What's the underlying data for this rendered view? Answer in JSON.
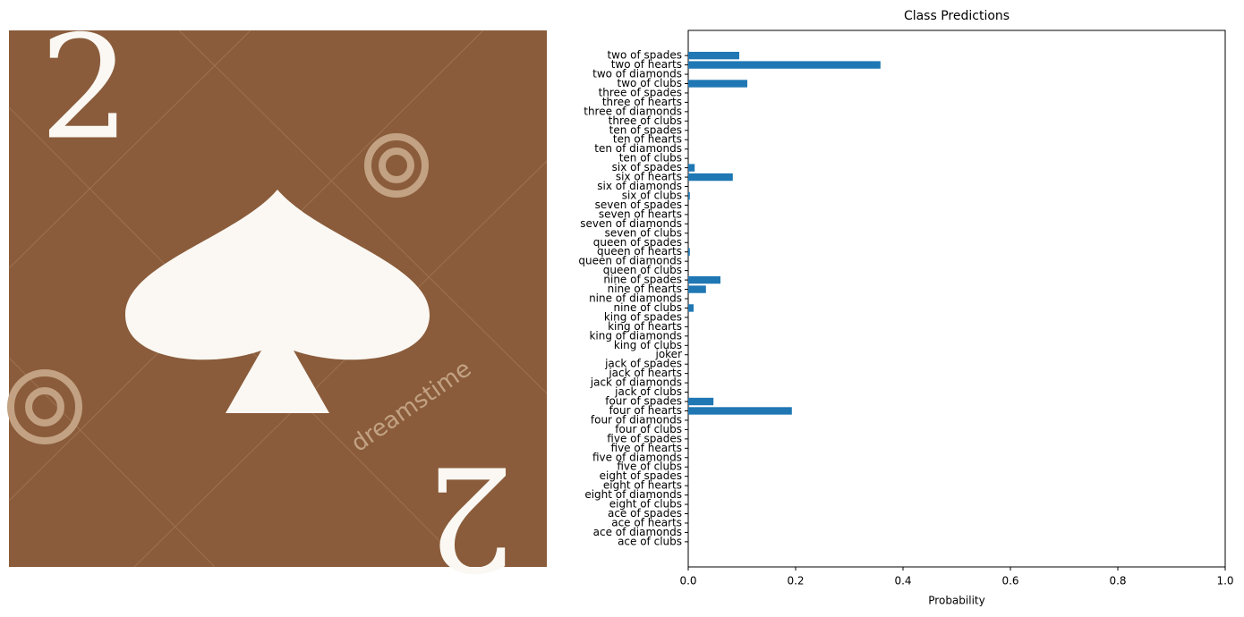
{
  "image": {
    "rank": "2",
    "watermark": "dreamstime"
  },
  "chart_data": {
    "type": "barh",
    "title": "Class Predictions",
    "x_label": "Probability",
    "categories": [
      "ace of clubs",
      "ace of diamonds",
      "ace of hearts",
      "ace of spades",
      "eight of clubs",
      "eight of diamonds",
      "eight of hearts",
      "eight of spades",
      "five of clubs",
      "five of diamonds",
      "five of hearts",
      "five of spades",
      "four of clubs",
      "four of diamonds",
      "four of hearts",
      "four of spades",
      "jack of clubs",
      "jack of diamonds",
      "jack of hearts",
      "jack of spades",
      "joker",
      "king of clubs",
      "king of diamonds",
      "king of hearts",
      "king of spades",
      "nine of clubs",
      "nine of diamonds",
      "nine of hearts",
      "nine of spades",
      "queen of clubs",
      "queen of diamonds",
      "queen of hearts",
      "queen of spades",
      "seven of clubs",
      "seven of diamonds",
      "seven of hearts",
      "seven of spades",
      "six of clubs",
      "six of diamonds",
      "six of hearts",
      "six of spades",
      "ten of clubs",
      "ten of diamonds",
      "ten of hearts",
      "ten of spades",
      "three of clubs",
      "three of diamonds",
      "three of hearts",
      "three of spades",
      "two of clubs",
      "two of diamonds",
      "two of hearts",
      "two of spades"
    ],
    "values": [
      0,
      0,
      0,
      0,
      0,
      0,
      0,
      0,
      0,
      0,
      0,
      0,
      0,
      0,
      0.193,
      0.047,
      0,
      0,
      0,
      0,
      0,
      0,
      0,
      0,
      0,
      0.01,
      0,
      0.033,
      0.06,
      0,
      0,
      0.003,
      0,
      0,
      0,
      0,
      0,
      0.003,
      0,
      0.083,
      0.012,
      0,
      0,
      0,
      0,
      0,
      0,
      0,
      0,
      0.11,
      0,
      0.358,
      0.095
    ],
    "color": "#1f77b4",
    "xlim": [
      0,
      1
    ],
    "xticks": [
      {
        "value": 0,
        "label": "0.0"
      },
      0.2,
      0.4,
      0.6,
      0.8,
      {
        "value": 1,
        "label": "1.0"
      }
    ],
    "grid": false
  }
}
